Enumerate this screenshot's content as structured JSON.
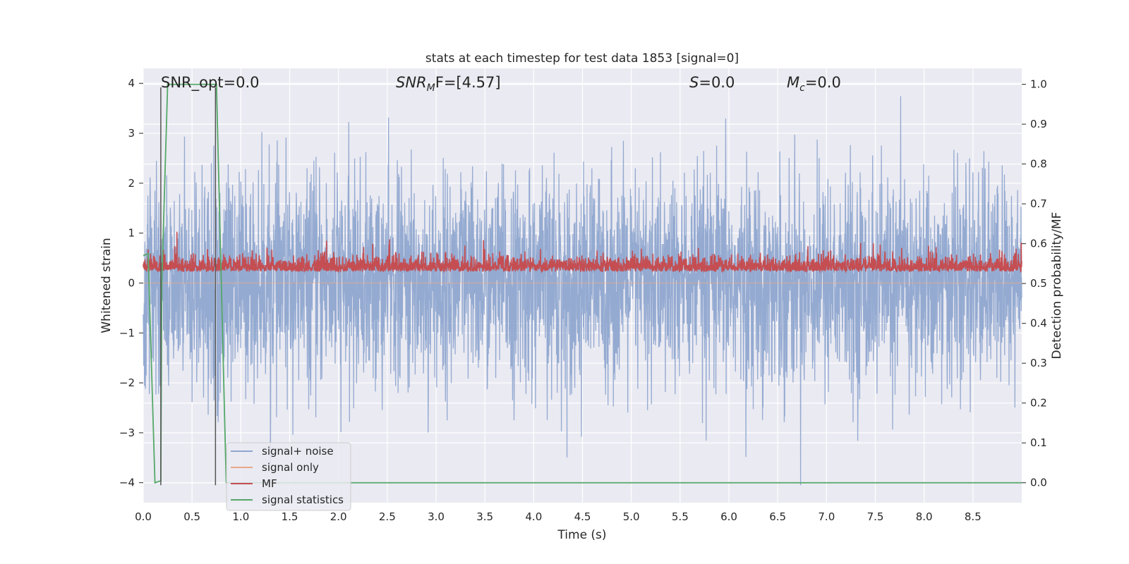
{
  "chart_data": {
    "type": "line",
    "title": "stats at each timestep for test data 1853 [signal=0]",
    "xlabel": "Time (s)",
    "ylabel_left": "Whitened strain",
    "ylabel_right": "Detection probability/MF",
    "xlim": [
      0.0,
      9.0
    ],
    "ylim_left": [
      -4.4,
      4.3
    ],
    "ylim_right": [
      -0.05,
      1.04
    ],
    "xticks": [
      "0.0",
      "0.5",
      "1.0",
      "1.5",
      "2.0",
      "2.5",
      "3.0",
      "3.5",
      "4.0",
      "4.5",
      "5.0",
      "5.5",
      "6.0",
      "6.5",
      "7.0",
      "7.5",
      "8.0",
      "8.5"
    ],
    "yticks_left": [
      "−4",
      "−3",
      "−2",
      "−1",
      "0",
      "1",
      "2",
      "3",
      "4"
    ],
    "yticks_right": [
      "0.0",
      "0.1",
      "0.2",
      "0.3",
      "0.4",
      "0.5",
      "0.6",
      "0.7",
      "0.8",
      "0.9",
      "1.0"
    ],
    "grid": true,
    "annotations": {
      "snr_opt": "SNR_opt=0.0",
      "snr_mf_name": "SNR",
      "snr_mf_sub": "M",
      "snr_mf_rest": "F=[4.57]",
      "s_name": "S",
      "s_rest": "=0.0",
      "mc_name": "M",
      "mc_sub": "c",
      "mc_rest": "=0.0"
    },
    "legend": {
      "placement": "lower-left",
      "entries": [
        "signal+ noise",
        "signal only",
        "MF",
        "signal statistics"
      ]
    },
    "series": [
      {
        "name": "signal+ noise",
        "axis": "left",
        "color": "#8fa6cf",
        "kind": "noise",
        "amplitude_std": 1.05,
        "mean": 0.0
      },
      {
        "name": "signal only",
        "axis": "left",
        "color": "#e8a889",
        "kind": "flat",
        "value": 0.0
      },
      {
        "name": "MF",
        "axis": "right",
        "color": "#c44e52",
        "kind": "noise",
        "baseline": 0.54,
        "amplitude_std": 0.018
      },
      {
        "name": "signal statistics",
        "axis": "right",
        "color": "#55a868",
        "kind": "polyline",
        "x": [
          0.0,
          0.05,
          0.12,
          0.18,
          0.19,
          0.25,
          0.26,
          0.72,
          0.75,
          0.85,
          0.9,
          9.0
        ],
        "y": [
          0.57,
          0.575,
          0.0,
          0.005,
          0.5,
          1.0,
          1.0,
          1.0,
          1.0,
          0.0,
          0.0,
          0.0
        ]
      },
      {
        "name": "",
        "axis": "left",
        "color": "#555555",
        "kind": "vline",
        "x": 0.18,
        "y": [
          -4.05,
          3.92
        ]
      },
      {
        "name": "",
        "axis": "left",
        "color": "#555555",
        "kind": "vline",
        "x": 0.74,
        "y": [
          -4.05,
          3.92
        ]
      }
    ]
  }
}
